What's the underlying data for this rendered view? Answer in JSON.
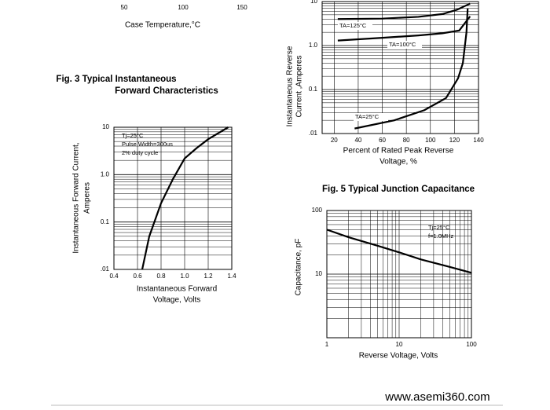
{
  "chart_data": [
    {
      "type": "axis",
      "xlabel": "Case Temperature,°C",
      "xlim": [
        50,
        150
      ],
      "xticks": [
        50,
        100,
        150
      ]
    },
    {
      "type": "line",
      "title": [
        "Fig. 3 Typical Instantaneous",
        "Forward Characteristics"
      ],
      "ylabel": [
        "Instantaneous Forward Current,",
        "Amperes"
      ],
      "xlabel": [
        "Instantaneous Forward",
        "Voltage, Volts"
      ],
      "annotations": [
        "Tj=25°C",
        "Pulse Width=300us",
        "2% duty cycle"
      ],
      "xlim": [
        0.4,
        1.4
      ],
      "xticks": [
        0.4,
        0.6,
        0.8,
        {
          "value": 1.0,
          "label": "1.0"
        },
        1.2,
        1.4
      ],
      "ylim": [
        0.01,
        10
      ],
      "yscale": "log",
      "yticks": [
        {
          "value": 0.01,
          "label": ".01"
        },
        0.1,
        {
          "value": 1.0,
          "label": "1.0"
        },
        10
      ],
      "grid": true,
      "series": [
        {
          "color": "#000000",
          "x": [
            0.64,
            0.7,
            0.8,
            0.9,
            1.0,
            1.1,
            1.2,
            1.37
          ],
          "values": [
            0.01,
            0.05,
            0.25,
            0.8,
            2.2,
            3.6,
            5.6,
            10
          ]
        }
      ]
    },
    {
      "type": "line",
      "ylabel": [
        "Instantaneous Reverse",
        "Current ,Amperes"
      ],
      "xlabel": [
        "Percent of Rated Peak Reverse",
        "Voltage, %"
      ],
      "xlim": [
        10,
        140
      ],
      "xticks": [
        20,
        40,
        60,
        80,
        100,
        120,
        140
      ],
      "ylim": [
        0.01,
        10
      ],
      "yscale": "log",
      "yticks": [
        {
          "value": 0.01,
          "label": ".01"
        },
        0.1,
        {
          "value": 1.0,
          "label": "1.0"
        },
        10
      ],
      "grid": true,
      "series": [
        {
          "name": "TA=125°C",
          "color": "#000000",
          "x": [
            23,
            60,
            90,
            110,
            122,
            133
          ],
          "values": [
            4,
            4.1,
            4.5,
            5.2,
            6.5,
            9
          ]
        },
        {
          "name": "TA=100°C",
          "color": "#000000",
          "x": [
            23,
            60,
            90,
            110,
            124,
            133
          ],
          "values": [
            1.3,
            1.5,
            1.7,
            1.9,
            2.2,
            4.6
          ]
        },
        {
          "name": "TA=25°C",
          "color": "#000000",
          "x": [
            37,
            70,
            95,
            113,
            123,
            127,
            130,
            131
          ],
          "values": [
            0.013,
            0.02,
            0.034,
            0.064,
            0.18,
            0.4,
            2,
            7
          ]
        }
      ]
    },
    {
      "type": "line",
      "title": [
        "Fig. 5 Typical Junction Capacitance"
      ],
      "ylabel": [
        "Capacitance, pF"
      ],
      "xlabel": [
        "Reverse Voltage, Volts"
      ],
      "annotations": [
        "Tj=25°C",
        "f=1.0MHz"
      ],
      "xlim": [
        1,
        100
      ],
      "xscale": "log",
      "xticks": [
        1,
        10,
        100
      ],
      "ylim": [
        1,
        100
      ],
      "yscale": "log",
      "yticks": [
        10,
        100
      ],
      "grid": true,
      "series": [
        {
          "color": "#000000",
          "x": [
            1,
            2,
            5,
            10,
            20,
            50,
            100
          ],
          "values": [
            50,
            38,
            28,
            22,
            17,
            13,
            10.5
          ]
        }
      ]
    }
  ],
  "footer": {
    "url": "www.asemi360.com"
  }
}
